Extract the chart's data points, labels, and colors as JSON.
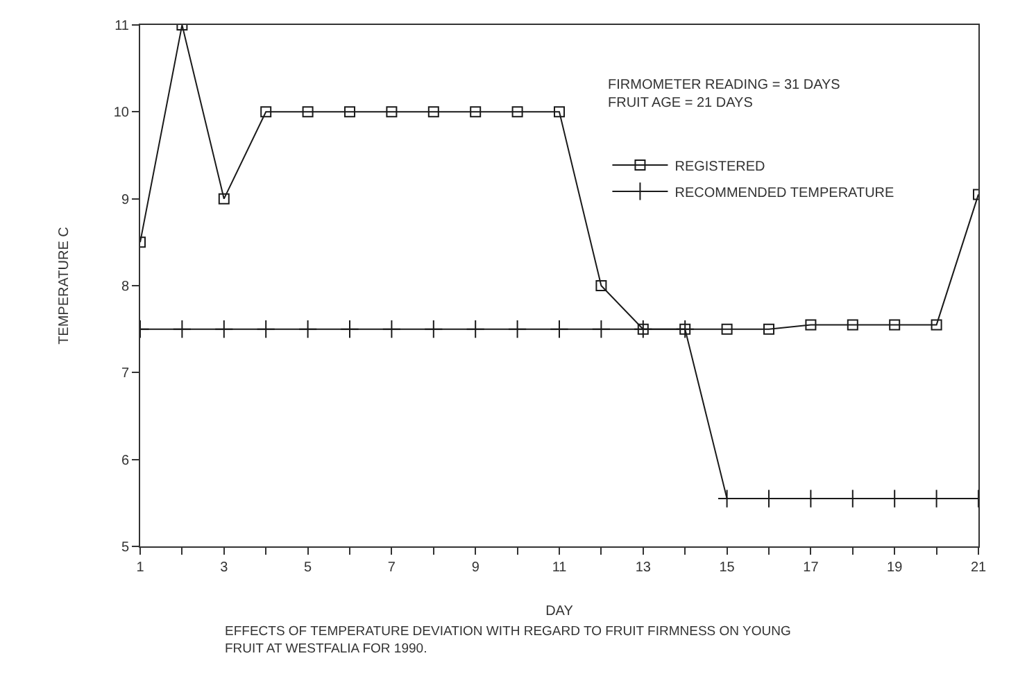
{
  "chart_data": {
    "type": "line",
    "title": "EFFECTS OF TEMPERATURE DEVIATION WITH REGARD TO FRUIT FIRMNESS ON YOUNG\nFRUIT AT WESTFALIA FOR 1990.",
    "xlabel": "DAY",
    "ylabel": "TEMPERATURE C",
    "annotations": [
      "FIRMOMETER READING = 31 DAYS",
      "FRUIT AGE = 21 DAYS"
    ],
    "x": [
      1,
      2,
      3,
      4,
      5,
      6,
      7,
      8,
      9,
      10,
      11,
      12,
      13,
      14,
      15,
      16,
      17,
      18,
      19,
      20,
      21
    ],
    "series": [
      {
        "name": "REGISTERED",
        "color": "#1a1a1a",
        "marker": "square",
        "values": [
          8.5,
          11,
          9,
          10,
          10,
          10,
          10,
          10,
          10,
          10,
          10,
          8.0,
          7.5,
          7.5,
          7.5,
          7.5,
          7.55,
          7.55,
          7.55,
          7.55,
          9.05
        ]
      },
      {
        "name": "RECOMMENDED TEMPERATURE",
        "color": "#1a1a1a",
        "marker": "cross",
        "values": [
          7.5,
          7.5,
          7.5,
          7.5,
          7.5,
          7.5,
          7.5,
          7.5,
          7.5,
          7.5,
          7.5,
          7.5,
          7.5,
          7.5,
          5.55,
          5.55,
          5.55,
          5.55,
          5.55,
          5.55,
          5.55
        ]
      }
    ],
    "xlim": [
      1,
      21
    ],
    "xticks": [
      1,
      {
        "value": 2,
        "label": null
      },
      3,
      {
        "value": 4,
        "label": null
      },
      5,
      {
        "value": 6,
        "label": null
      },
      7,
      {
        "value": 8,
        "label": null
      },
      9,
      {
        "value": 10,
        "label": null
      },
      11,
      {
        "value": 12,
        "label": null
      },
      13,
      {
        "value": 14,
        "label": null
      },
      15,
      {
        "value": 16,
        "label": null
      },
      17,
      {
        "value": 18,
        "label": null
      },
      19,
      {
        "value": 20,
        "label": null
      },
      21
    ],
    "ylim": [
      5,
      11
    ],
    "yticks": [
      5,
      6,
      7,
      8,
      9,
      10,
      11
    ],
    "grid": false,
    "legend": "top right",
    "line_style": "solid"
  }
}
